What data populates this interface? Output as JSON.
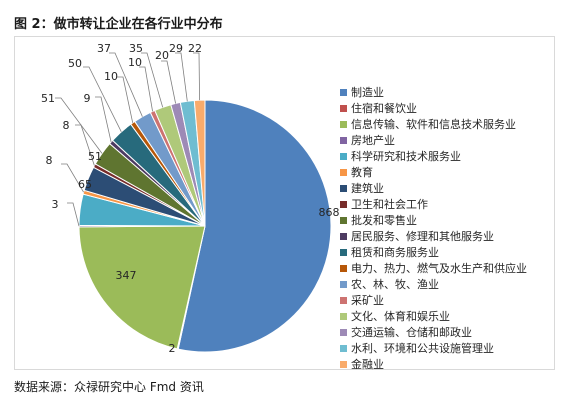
{
  "title": "图 2：做市转让企业在各行业中分布",
  "source": "数据来源：众禄研究中心 Fmd 资讯",
  "chart_data": {
    "type": "pie",
    "title": "",
    "legend_position": "right",
    "categories": [
      "制造业",
      "住宿和餐饮业",
      "信息传输、软件和信息技术服务业",
      "房地产业",
      "科学研究和技术服务业",
      "教育",
      "建筑业",
      "卫生和社会工作",
      "批发和零售业",
      "居民服务、修理和其他服务业",
      "租赁和商务服务业",
      "电力、热力、燃气及水生产和供应业",
      "农、林、牧、渔业",
      "采矿业",
      "文化、体育和娱乐业",
      "交通运输、仓储和邮政业",
      "水利、环境和公共设施管理业",
      "金融业"
    ],
    "values": [
      868,
      2,
      347,
      3,
      65,
      8,
      51,
      8,
      51,
      9,
      50,
      10,
      37,
      10,
      35,
      20,
      29,
      22
    ],
    "data_labels": [
      "868",
      "2",
      "347",
      "3",
      "65",
      "8",
      "51",
      "8",
      "51",
      "9",
      "50",
      "10",
      "37",
      "10",
      "35",
      "20",
      "29",
      "22"
    ],
    "colors": [
      "#4f81bd",
      "#c0504d",
      "#9bbb59",
      "#8064a2",
      "#4bacc6",
      "#f79646",
      "#2c4d75",
      "#772c2a",
      "#5f7530",
      "#4d3b62",
      "#276a7c",
      "#b65708",
      "#729aca",
      "#cd7371",
      "#afc97a",
      "#9d8ab6",
      "#6fbdd1",
      "#f9ab6b"
    ]
  }
}
